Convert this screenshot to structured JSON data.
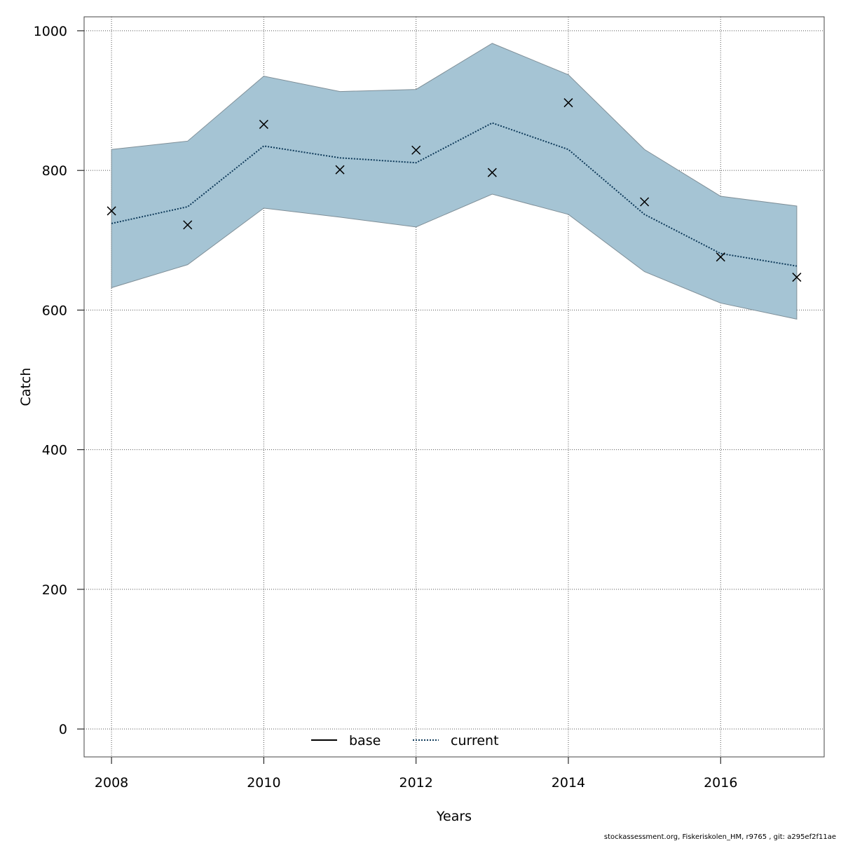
{
  "chart_data": {
    "type": "line",
    "xlabel": "Years",
    "ylabel": "Catch",
    "xlim": [
      2007.64,
      2017.36
    ],
    "ylim": [
      -40,
      1020
    ],
    "x_ticks": [
      2008,
      2010,
      2012,
      2014,
      2016
    ],
    "y_ticks": [
      0,
      200,
      400,
      600,
      800,
      1000
    ],
    "x_tick_labels": [
      "2008",
      "2010",
      "2012",
      "2014",
      "2016"
    ],
    "y_tick_labels": [
      "0",
      "200",
      "400",
      "600",
      "800",
      "1000"
    ],
    "grid": true,
    "legend_position": "bottom-center",
    "x": [
      2008,
      2009,
      2010,
      2011,
      2012,
      2013,
      2014,
      2015,
      2016,
      2017
    ],
    "observed": [
      742,
      722,
      866,
      801,
      829,
      797,
      897,
      755,
      676,
      647
    ],
    "series": [
      {
        "name": "base",
        "values": [
          724,
          748,
          835,
          818,
          811,
          868,
          830,
          737,
          681,
          663
        ]
      },
      {
        "name": "current",
        "values": [
          724,
          748,
          835,
          818,
          811,
          868,
          830,
          737,
          681,
          663
        ]
      }
    ],
    "band": {
      "upper": [
        830,
        842,
        935,
        913,
        916,
        982,
        937,
        830,
        763,
        749
      ],
      "lower": [
        632,
        665,
        746,
        733,
        719,
        766,
        737,
        655,
        610,
        587
      ]
    },
    "colors": {
      "band": "#a5c4d4",
      "band_edge": "#7f8f98",
      "current": "#0e3a5a",
      "base": "#000000",
      "grid": "#555555",
      "observed": "#000000"
    }
  },
  "footer": "stockassessment.org, Fiskeriskolen_HM, r9765 , git: a295ef2f11ae"
}
